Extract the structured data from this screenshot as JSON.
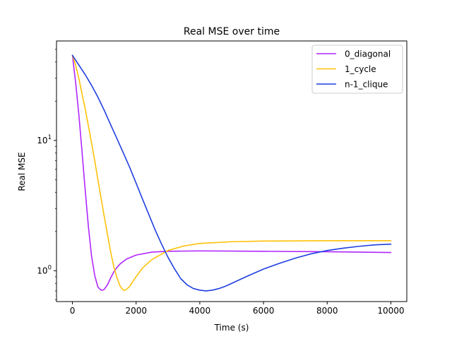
{
  "chart_data": {
    "type": "line",
    "title": "Real MSE over time",
    "xlabel": "Time (s)",
    "ylabel": "Real MSE",
    "xlim": [
      -500,
      10500
    ],
    "ylim": [
      0.58,
      58
    ],
    "yscale": "log",
    "grid": false,
    "legend_position": "top-right",
    "x_ticks": [
      {
        "value": 0,
        "label": "0"
      },
      {
        "value": 2000,
        "label": "2000"
      },
      {
        "value": 4000,
        "label": "4000"
      },
      {
        "value": 6000,
        "label": "6000"
      },
      {
        "value": 8000,
        "label": "8000"
      },
      {
        "value": 10000,
        "label": "10000"
      }
    ],
    "y_ticks": [
      {
        "value": 1,
        "base": "10",
        "exp": "0"
      },
      {
        "value": 10,
        "base": "10",
        "exp": "1"
      }
    ],
    "series": [
      {
        "name": "0_diagonal",
        "color": "#b026ff",
        "x": [
          0,
          100,
          200,
          300,
          400,
          500,
          600,
          700,
          800,
          900,
          950,
          1000,
          1100,
          1200,
          1300,
          1400,
          1500,
          1700,
          2000,
          2500,
          3000,
          4000,
          6000,
          8000,
          10000
        ],
        "y": [
          45,
          28,
          16,
          8.3,
          4.2,
          2.2,
          1.3,
          0.92,
          0.75,
          0.71,
          0.71,
          0.72,
          0.78,
          0.88,
          0.98,
          1.06,
          1.13,
          1.23,
          1.32,
          1.39,
          1.41,
          1.42,
          1.41,
          1.4,
          1.38
        ]
      },
      {
        "name": "1_cycle",
        "color": "#ffc107",
        "x": [
          0,
          100,
          200,
          300,
          400,
          500,
          600,
          700,
          800,
          900,
          1000,
          1100,
          1200,
          1300,
          1400,
          1500,
          1600,
          1650,
          1700,
          1800,
          1900,
          2000,
          2200,
          2500,
          3000,
          3500,
          4000,
          5000,
          6000,
          8000,
          10000
        ],
        "y": [
          45,
          38,
          30,
          23,
          17.5,
          13,
          9.6,
          7,
          5,
          3.6,
          2.6,
          1.9,
          1.4,
          1.07,
          0.88,
          0.76,
          0.71,
          0.71,
          0.72,
          0.76,
          0.83,
          0.9,
          1.05,
          1.22,
          1.43,
          1.55,
          1.62,
          1.67,
          1.69,
          1.7,
          1.7
        ]
      },
      {
        "name": "n-1_clique",
        "color": "#1f3fe0",
        "x": [
          0,
          200,
          400,
          600,
          800,
          1000,
          1200,
          1400,
          1600,
          1800,
          2000,
          2200,
          2400,
          2600,
          2800,
          3000,
          3200,
          3400,
          3600,
          3800,
          4000,
          4200,
          4400,
          4600,
          4800,
          5000,
          5500,
          6000,
          6500,
          7000,
          7500,
          8000,
          8500,
          9000,
          9500,
          10000
        ],
        "y": [
          45,
          38,
          32,
          26.5,
          21.5,
          17,
          13.2,
          10.3,
          8,
          6.2,
          4.7,
          3.55,
          2.7,
          2.05,
          1.6,
          1.27,
          1.04,
          0.87,
          0.78,
          0.73,
          0.71,
          0.7,
          0.71,
          0.73,
          0.76,
          0.8,
          0.91,
          1.03,
          1.14,
          1.25,
          1.35,
          1.43,
          1.49,
          1.54,
          1.58,
          1.6
        ]
      }
    ]
  }
}
